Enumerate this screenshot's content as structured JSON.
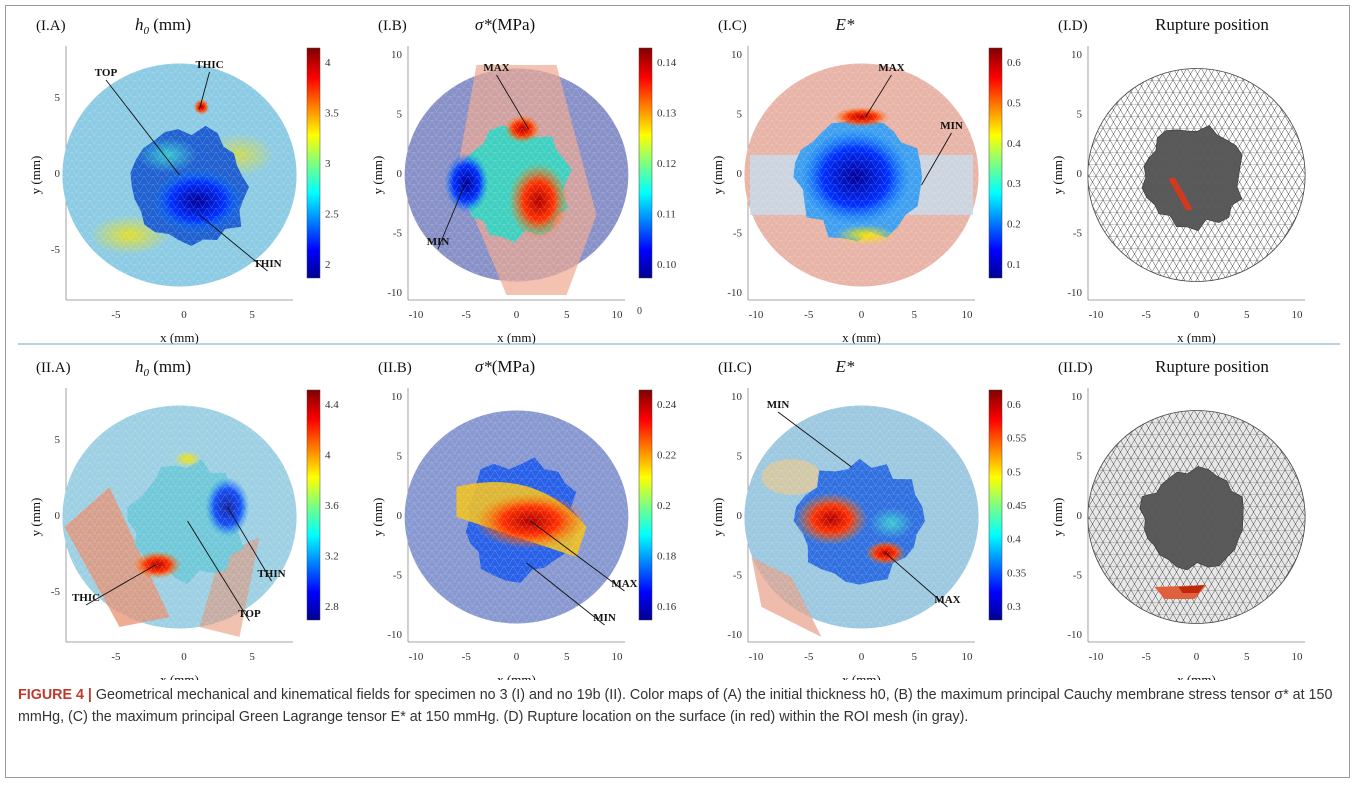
{
  "rows": [
    {
      "panels": [
        {
          "id": "I.A",
          "title_prefix": "h",
          "title_sub": "0",
          "title_unit": " (mm)",
          "kind": "thickness",
          "ticks_x": [
            "-5",
            "0",
            "5"
          ],
          "ticks_y": [
            "5",
            "0",
            "-5"
          ],
          "xlabel": "x (mm)",
          "ylabel": "y (mm)",
          "cbar_ticks": [
            "4",
            "3.5",
            "3",
            "2.5",
            "2"
          ],
          "annotations": [
            "TOP",
            "THIC",
            "THIN"
          ]
        },
        {
          "id": "I.B",
          "title_prefix": "σ*",
          "title_sub": "",
          "title_unit": "(MPa)",
          "kind": "stress",
          "ticks_x": [
            "-10",
            "-5",
            "0",
            "5",
            "10"
          ],
          "ticks_y": [
            "10",
            "5",
            "0",
            "-5",
            "-10"
          ],
          "xlabel": "x (mm)",
          "ylabel": "y (mm)",
          "cbar_ticks": [
            "0.14",
            "0.13",
            "0.12",
            "0.11",
            "0.10"
          ],
          "annotations": [
            "MAX",
            "MIN"
          ],
          "extra_tick": "0"
        },
        {
          "id": "I.C",
          "title_prefix": "E*",
          "title_sub": "",
          "title_unit": "",
          "kind": "strain",
          "ticks_x": [
            "-10",
            "-5",
            "0",
            "5",
            "10"
          ],
          "ticks_y": [
            "10",
            "5",
            "0",
            "-5",
            "-10"
          ],
          "xlabel": "x (mm)",
          "ylabel": "y (mm)",
          "cbar_ticks": [
            "0.6",
            "0.5",
            "0.4",
            "0.3",
            "0.2",
            "0.1"
          ],
          "annotations": [
            "MAX",
            "MIN"
          ]
        },
        {
          "id": "I.D",
          "title_prefix": "Rupture position",
          "title_sub": "",
          "title_unit": "",
          "kind": "mesh",
          "ticks_x": [
            "-10",
            "-5",
            "0",
            "5",
            "10"
          ],
          "ticks_y": [
            "10",
            "5",
            "0",
            "-5",
            "-10"
          ],
          "xlabel": "x (mm)",
          "ylabel": "y (mm)",
          "cbar_ticks": [],
          "annotations": []
        }
      ]
    },
    {
      "panels": [
        {
          "id": "II.A",
          "title_prefix": "h",
          "title_sub": "0",
          "title_unit": " (mm)",
          "kind": "thickness2",
          "ticks_x": [
            "-5",
            "0",
            "5"
          ],
          "ticks_y": [
            "5",
            "0",
            "-5"
          ],
          "xlabel": "x (mm)",
          "ylabel": "y (mm)",
          "cbar_ticks": [
            "4.4",
            "4",
            "3.6",
            "3.2",
            "2.8"
          ],
          "annotations": [
            "THIC",
            "TOP",
            "THIN"
          ]
        },
        {
          "id": "II.B",
          "title_prefix": "σ*",
          "title_sub": "",
          "title_unit": "(MPa)",
          "kind": "stress2",
          "ticks_x": [
            "-10",
            "-5",
            "0",
            "5",
            "10"
          ],
          "ticks_y": [
            "10",
            "5",
            "0",
            "-5",
            "-10"
          ],
          "xlabel": "x (mm)",
          "ylabel": "y (mm)",
          "cbar_ticks": [
            "0.24",
            "0.22",
            "0.2",
            "0.18",
            "0.16"
          ],
          "annotations": [
            "MAX",
            "MIN"
          ]
        },
        {
          "id": "II.C",
          "title_prefix": "E*",
          "title_sub": "",
          "title_unit": "",
          "kind": "strain2",
          "ticks_x": [
            "-10",
            "-5",
            "0",
            "5",
            "10"
          ],
          "ticks_y": [
            "10",
            "5",
            "0",
            "-5",
            "-10"
          ],
          "xlabel": "x (mm)",
          "ylabel": "y (mm)",
          "cbar_ticks": [
            "0.6",
            "0.55",
            "0.5",
            "0.45",
            "0.4",
            "0.35",
            "0.3"
          ],
          "annotations": [
            "MIN",
            "MAX"
          ]
        },
        {
          "id": "II.D",
          "title_prefix": "Rupture position",
          "title_sub": "",
          "title_unit": "",
          "kind": "mesh2",
          "ticks_x": [
            "-10",
            "-5",
            "0",
            "5",
            "10"
          ],
          "ticks_y": [
            "10",
            "5",
            "0",
            "-5",
            "-10"
          ],
          "xlabel": "x (mm)",
          "ylabel": "y (mm)",
          "cbar_ticks": [],
          "annotations": []
        }
      ]
    }
  ],
  "caption": {
    "label": "FIGURE 4 |",
    "text": " Geometrical mechanical and kinematical fields for specimen no 3 (I) and no 19b (II). Color maps of (A) the initial thickness h0, (B) the maximum principal Cauchy membrane stress tensor σ* at 150 mmHg, (C) the maximum principal Green Lagrange tensor E* at 150 mmHg. (D) Rupture location on the surface (in red) within the ROI mesh (in gray)."
  }
}
